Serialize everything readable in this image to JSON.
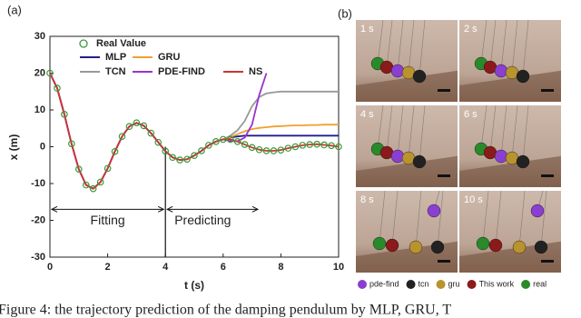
{
  "chart_data": {
    "type": "line",
    "panel_label": "(a)",
    "xlabel": "t (s)",
    "ylabel": "x (m)",
    "x": [
      0,
      0.25,
      0.5,
      0.75,
      1,
      1.25,
      1.5,
      1.75,
      2,
      2.25,
      2.5,
      2.75,
      3,
      3.25,
      3.5,
      3.75,
      4,
      4.25,
      4.5,
      4.75,
      5,
      5.25,
      5.5,
      5.75,
      6,
      6.25,
      6.5,
      6.75,
      7,
      7.25,
      7.5,
      7.75,
      8,
      8.25,
      8.5,
      8.75,
      9,
      9.25,
      9.5,
      9.75,
      10
    ],
    "series": [
      {
        "name": "Real Value",
        "color": "#3a9a3a",
        "marker": "circle",
        "values": [
          20,
          15.9,
          8.8,
          0.8,
          -6.1,
          -10.4,
          -11.4,
          -9.6,
          -5.9,
          -1.3,
          2.8,
          5.5,
          6.5,
          5.7,
          3.7,
          1.2,
          -1.2,
          -2.9,
          -3.6,
          -3.4,
          -2.4,
          -1.1,
          0.4,
          1.4,
          2.0,
          2.0,
          1.4,
          0.6,
          -0.2,
          -0.8,
          -1.1,
          -1.1,
          -0.9,
          -0.4,
          0,
          0.4,
          0.6,
          0.7,
          0.5,
          0.3,
          0
        ]
      },
      {
        "name": "MLP",
        "color": "#1f1f8c",
        "values": [
          20,
          15.9,
          8.8,
          0.8,
          -6.1,
          -10.4,
          -11.4,
          -9.6,
          -5.9,
          -1.3,
          2.8,
          5.5,
          6.5,
          5.7,
          3.7,
          1.2,
          -1.2,
          -2.9,
          -3.6,
          -3.4,
          -2.4,
          -1.1,
          0.4,
          1.4,
          2.0,
          2.5,
          2.8,
          3,
          3,
          3,
          3,
          3,
          3,
          3,
          3,
          3,
          3,
          3,
          3,
          3,
          3
        ]
      },
      {
        "name": "GRU",
        "color": "#f0a030",
        "values": [
          20,
          15.9,
          8.8,
          0.8,
          -6.1,
          -10.4,
          -11.4,
          -9.6,
          -5.9,
          -1.3,
          2.8,
          5.5,
          6.5,
          5.7,
          3.7,
          1.2,
          -1.2,
          -2.9,
          -3.6,
          -3.4,
          -2.4,
          -1.1,
          0.4,
          1.4,
          2.0,
          2.6,
          3.4,
          4.2,
          4.8,
          5.1,
          5.3,
          5.5,
          5.6,
          5.7,
          5.8,
          5.8,
          5.9,
          5.9,
          6,
          6,
          6
        ]
      },
      {
        "name": "TCN",
        "color": "#999999",
        "values": [
          20,
          15.9,
          8.8,
          0.8,
          -6.1,
          -10.4,
          -11.4,
          -9.6,
          -5.9,
          -1.3,
          2.8,
          5.5,
          6.5,
          5.7,
          3.7,
          1.2,
          -1.2,
          -2.9,
          -3.6,
          -3.4,
          -2.4,
          -1.1,
          0.4,
          1.4,
          2.0,
          3,
          4.5,
          7,
          11,
          13.5,
          14.5,
          14.8,
          15,
          15,
          15,
          15,
          15,
          15,
          15,
          15,
          15
        ]
      },
      {
        "name": "PDE-FIND",
        "color": "#9933cc",
        "values": [
          20,
          15.9,
          8.8,
          0.8,
          -6.1,
          -10.4,
          -11.4,
          -9.6,
          -5.9,
          -1.3,
          2.8,
          5.5,
          6.5,
          5.7,
          3.7,
          1.2,
          -1.2,
          -2.9,
          -3.6,
          -3.4,
          -2.4,
          -1.1,
          0.4,
          1.4,
          2.0,
          1.5,
          1.5,
          2.5,
          6,
          14,
          20,
          null,
          null,
          null,
          null,
          null,
          null,
          null,
          null,
          null,
          null
        ]
      },
      {
        "name": "NS",
        "color": "#cc3333",
        "values": [
          20,
          15.9,
          8.8,
          0.8,
          -6.1,
          -10.4,
          -11.4,
          -9.6,
          -5.9,
          -1.3,
          2.8,
          5.5,
          6.5,
          5.7,
          3.7,
          1.2,
          -1.2,
          -2.9,
          -3.6,
          -3.4,
          -2.4,
          -1.1,
          0.4,
          1.4,
          2.0,
          2.0,
          1.4,
          0.6,
          -0.2,
          -0.8,
          -1.1,
          -1.1,
          -0.9,
          -0.4,
          0,
          0.4,
          0.6,
          0.7,
          0.5,
          0.3,
          0
        ]
      }
    ],
    "xlim": [
      0,
      10
    ],
    "ylim": [
      -30,
      30
    ],
    "xticks": [
      0,
      2,
      4,
      6,
      8,
      10
    ],
    "yticks": [
      -30,
      -20,
      -10,
      0,
      10,
      20,
      30
    ],
    "vline": 4,
    "annotations": [
      "Fitting",
      "Predicting"
    ]
  },
  "panel_b": {
    "label": "(b)",
    "frames": [
      "1 s",
      "2 s",
      "4 s",
      "6 s",
      "8 s",
      "10 s"
    ],
    "legend": [
      {
        "name": "pde-find",
        "color": "#8a3fd1"
      },
      {
        "name": "tcn",
        "color": "#222222"
      },
      {
        "name": "gru",
        "color": "#b8932e"
      },
      {
        "name": "This work",
        "color": "#8b1a1a"
      },
      {
        "name": "real",
        "color": "#2a8a2a"
      }
    ]
  },
  "caption": "Figure 4: the trajectory prediction of the damping pendulum by MLP, GRU, T"
}
